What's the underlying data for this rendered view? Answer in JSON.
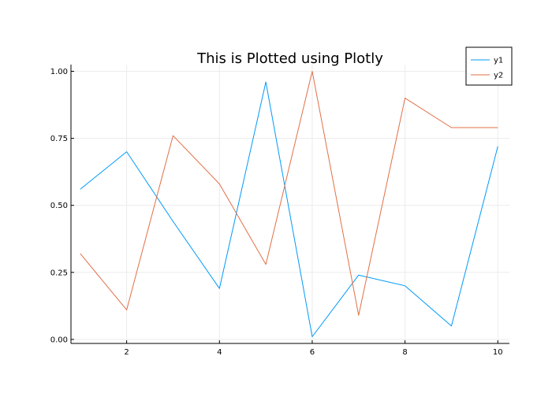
{
  "chart_data": {
    "type": "line",
    "title": "This is Plotted using Plotly",
    "xlabel": "",
    "ylabel": "",
    "x": [
      1,
      2,
      3,
      4,
      5,
      6,
      7,
      8,
      9,
      10
    ],
    "series": [
      {
        "name": "y1",
        "color": "#009AF9",
        "values": [
          0.56,
          0.7,
          0.44,
          0.19,
          0.96,
          0.01,
          0.24,
          0.2,
          0.05,
          0.72
        ]
      },
      {
        "name": "y2",
        "color": "#E26F46",
        "values": [
          0.32,
          0.11,
          0.76,
          0.58,
          0.28,
          1.0,
          0.09,
          0.9,
          0.79,
          0.79
        ]
      }
    ],
    "xlim": [
      0.8,
      10.25
    ],
    "ylim": [
      -0.015,
      1.025
    ],
    "xticks": [
      2,
      4,
      6,
      8,
      10
    ],
    "xtick_labels": [
      "2",
      "4",
      "6",
      "8",
      "10"
    ],
    "yticks": [
      0,
      0.25,
      0.5,
      0.75,
      1.0
    ],
    "ytick_labels": [
      "0.00",
      "0.25",
      "0.50",
      "0.75",
      "1.00"
    ],
    "grid": true,
    "legend_position": "top-right"
  }
}
